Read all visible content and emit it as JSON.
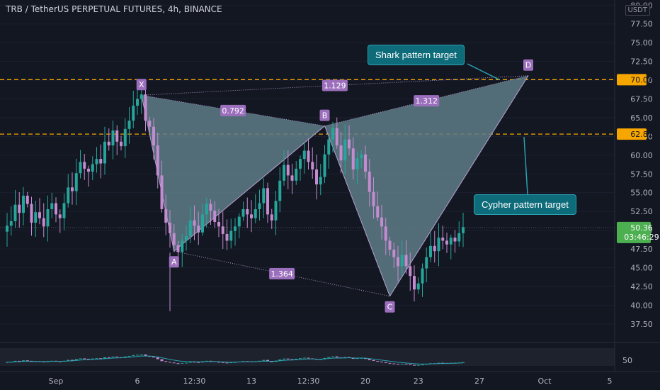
{
  "header": {
    "title": "TRB / TetherUS PERPETUAL FUTURES, 4h, BINANCE",
    "unit_badge": "USDT",
    "top_price": "80.00"
  },
  "colors": {
    "background": "#131722",
    "bull": "#26a69a",
    "bear": "#c48cd0",
    "pattern_fill": "#5f7d87",
    "pattern_line": "#b79fd0",
    "label_bg": "#9c6fbd",
    "level_line": "#f7a600",
    "callout_bg": "#0e6b7a",
    "last_price": "#4caf50"
  },
  "callouts": {
    "shark": "Shark pattern target",
    "cypher": "Cypher pattern target"
  },
  "chart_data": {
    "type": "candlestick",
    "title": "TRB / TetherUS PERPETUAL FUTURES, 4h, BINANCE",
    "ylim": [
      35.5,
      80.5
    ],
    "y_ticks": [
      "37.50",
      "40.00",
      "42.50",
      "45.00",
      "47.50",
      "50.00",
      "52.50",
      "55.00",
      "57.50",
      "60.00",
      "62.50",
      "65.00",
      "67.50",
      "70.00",
      "72.50",
      "75.00",
      "77.50",
      "80.00"
    ],
    "x_ticks": [
      {
        "label": "Sep",
        "index": 12
      },
      {
        "label": "6",
        "index": 32
      },
      {
        "label": "12:30",
        "index": 46
      },
      {
        "label": "13",
        "index": 60
      },
      {
        "label": "12:30",
        "index": 74
      },
      {
        "label": "20",
        "index": 88
      },
      {
        "label": "23",
        "index": 101
      },
      {
        "label": "27",
        "index": 116
      },
      {
        "label": "Oct",
        "index": 132
      },
      {
        "label": "5",
        "index": 148
      }
    ],
    "candles_close": [
      50.6,
      51.2,
      53.4,
      52.3,
      54.6,
      53.5,
      51.0,
      52.4,
      51.6,
      50.5,
      52.8,
      53.6,
      52.1,
      51.6,
      53.6,
      55.7,
      55.2,
      57.6,
      59.1,
      58.2,
      57.8,
      58.8,
      59.5,
      58.9,
      61.8,
      61.3,
      63.3,
      61.8,
      61.2,
      63.5,
      64.6,
      66.6,
      67.5,
      68.1,
      64.6,
      63.8,
      61.3,
      57.3,
      52.8,
      51.0,
      49.6,
      48.0,
      47.1,
      48.6,
      49.2,
      51.3,
      50.6,
      49.7,
      52.1,
      53.5,
      52.6,
      51.1,
      50.5,
      49.5,
      48.6,
      49.9,
      50.5,
      51.8,
      52.8,
      52.1,
      51.6,
      52.8,
      53.6,
      55.6,
      52.1,
      51.3,
      53.9,
      56.6,
      58.7,
      57.3,
      56.6,
      58.2,
      59.5,
      60.6,
      59.1,
      58.1,
      56.1,
      57.1,
      60.1,
      62.1,
      63.6,
      61.3,
      59.3,
      62.1,
      60.9,
      58.1,
      59.6,
      60.1,
      57.8,
      55.1,
      53.2,
      51.7,
      50.5,
      48.6,
      47.4,
      46.4,
      45.2,
      46.7,
      45.2,
      43.9,
      42.1,
      42.9,
      44.9,
      46.4,
      47.9,
      47.2,
      49.0,
      48.6,
      48.1,
      49.0,
      48.5,
      49.6,
      50.4
    ],
    "last_price": "50.36",
    "countdown": "03:46:29",
    "horizontal_levels": [
      {
        "value": 70.07,
        "label": "70.07"
      },
      {
        "value": 62.81,
        "label": "62.81"
      }
    ],
    "harmonic_points": [
      {
        "label": "X",
        "index": 33,
        "value": 68.0
      },
      {
        "label": "A",
        "index": 41,
        "value": 47.2
      },
      {
        "label": "B",
        "index": 78,
        "value": 63.9
      },
      {
        "label": "C",
        "index": 94,
        "value": 41.2
      },
      {
        "label": "D",
        "index": 128,
        "value": 70.6
      }
    ],
    "ratios": [
      {
        "label": "0.792",
        "from": "X",
        "to": "B"
      },
      {
        "label": "1.129",
        "from": "X",
        "to": "D"
      },
      {
        "label": "1.312",
        "from": "B",
        "to": "D"
      },
      {
        "label": "1.364",
        "from": "A",
        "to": "C"
      }
    ],
    "oscillator": {
      "tick": "50",
      "ylim": [
        25,
        75
      ]
    }
  }
}
